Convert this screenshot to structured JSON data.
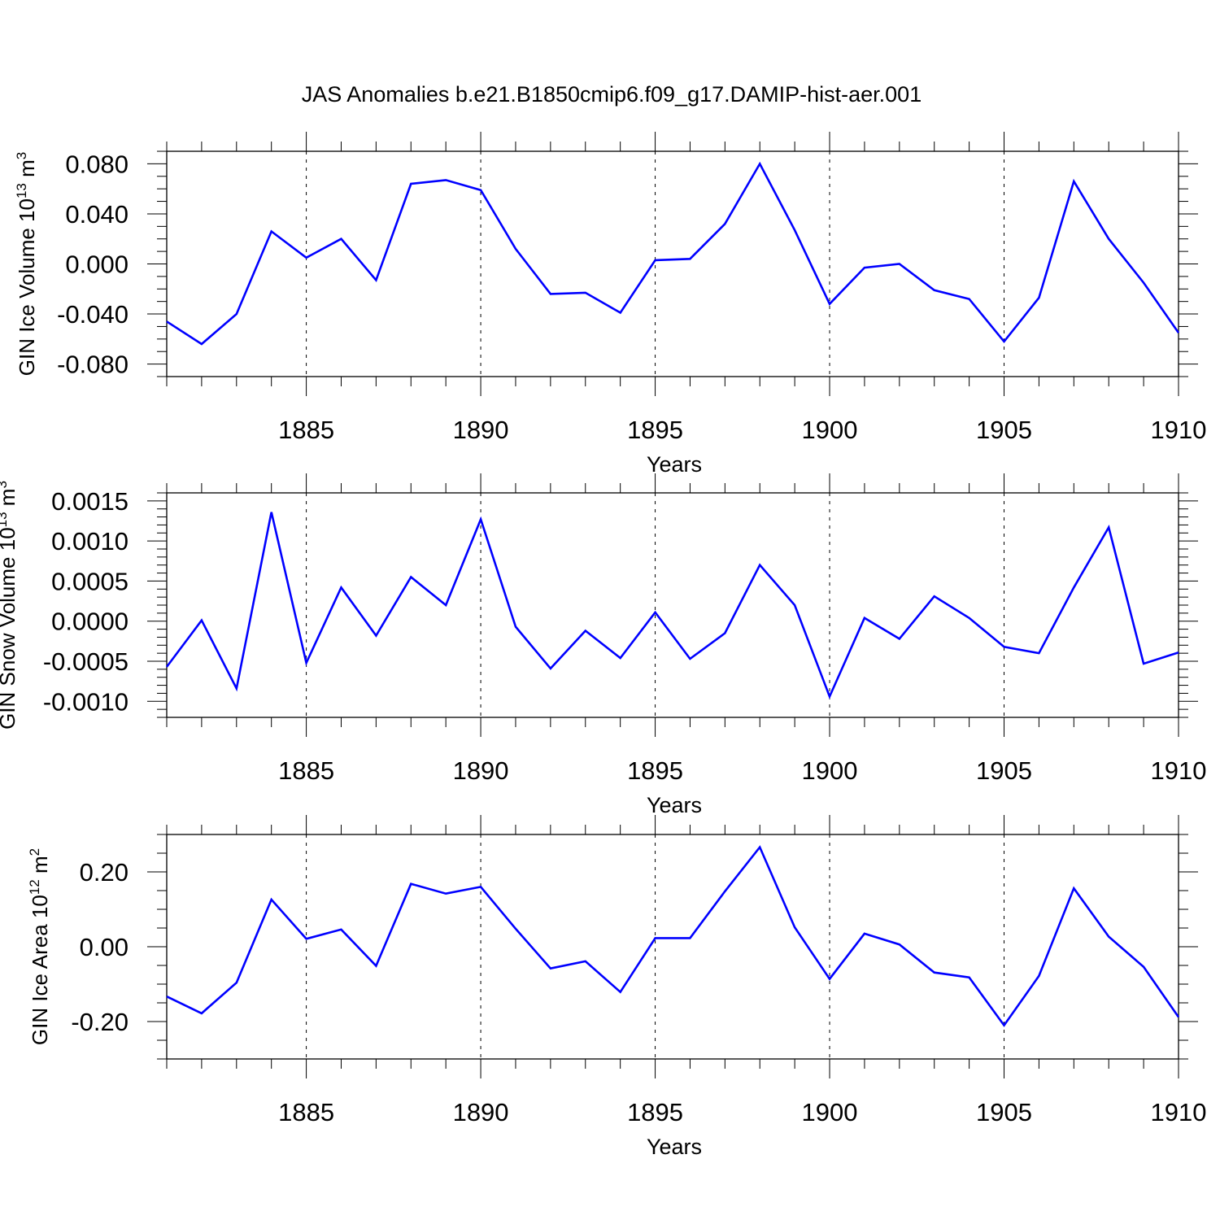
{
  "title": "JAS Anomalies b.e21.B1850cmip6.f09_g17.DAMIP-hist-aer.001",
  "colors": {
    "line": "#0000ff",
    "frame": "#000000",
    "grid": "#000000",
    "background": "#ffffff"
  },
  "chart_data": [
    {
      "type": "line",
      "title": "JAS Anomalies b.e21.B1850cmip6.f09_g17.DAMIP-hist-aer.001",
      "ylabel": {
        "text": "GIN Ice Volume 10",
        "sup": "13",
        "unit": " m",
        "unit_sup": "3"
      },
      "xlabel": "Years",
      "xlim": [
        1881,
        1910
      ],
      "ylim": [
        -0.09,
        0.09
      ],
      "xticks": [
        1885,
        1890,
        1895,
        1900,
        1905,
        1910
      ],
      "xtick_labels": [
        "1885",
        "1890",
        "1895",
        "1900",
        "1905",
        "1910"
      ],
      "yticks": [
        0.08,
        0.04,
        0.0,
        -0.04,
        -0.08
      ],
      "ytick_labels": [
        "0.080",
        "0.040",
        "0.000",
        "-0.040",
        "-0.080"
      ],
      "yminor_step": 0.01,
      "grid": "vertical dashed lines at major x ticks",
      "series": [
        {
          "x": [
            1881,
            1882,
            1883,
            1884,
            1885,
            1886,
            1887,
            1888,
            1889,
            1890,
            1891,
            1892,
            1893,
            1894,
            1895,
            1896,
            1897,
            1898,
            1899,
            1900,
            1901,
            1902,
            1903,
            1904,
            1905,
            1906,
            1907,
            1908,
            1909,
            1910
          ],
          "values": [
            -0.046,
            -0.064,
            -0.04,
            0.026,
            0.005,
            0.02,
            -0.013,
            0.064,
            0.067,
            0.059,
            0.012,
            -0.024,
            -0.023,
            -0.039,
            0.003,
            0.004,
            0.032,
            0.08,
            0.027,
            -0.032,
            -0.003,
            0.0,
            -0.021,
            -0.028,
            -0.062,
            -0.027,
            0.066,
            0.02,
            -0.015,
            -0.055
          ]
        }
      ]
    },
    {
      "type": "line",
      "ylabel": {
        "text": "GIN Snow Volume 10",
        "sup": "13",
        "unit": " m",
        "unit_sup": "3"
      },
      "xlabel": "Years",
      "xlim": [
        1881,
        1910
      ],
      "ylim": [
        -0.0012,
        0.0016
      ],
      "xticks": [
        1885,
        1890,
        1895,
        1900,
        1905,
        1910
      ],
      "xtick_labels": [
        "1885",
        "1890",
        "1895",
        "1900",
        "1905",
        "1910"
      ],
      "yticks": [
        0.0015,
        0.001,
        0.0005,
        0.0,
        -0.0005,
        -0.001
      ],
      "ytick_labels": [
        "0.0015",
        "0.0010",
        "0.0005",
        "0.0000",
        "-0.0005",
        "-0.0010"
      ],
      "yminor_step": 0.0001,
      "grid": "vertical dashed lines at major x ticks",
      "series": [
        {
          "x": [
            1881,
            1882,
            1883,
            1884,
            1885,
            1886,
            1887,
            1888,
            1889,
            1890,
            1891,
            1892,
            1893,
            1894,
            1895,
            1896,
            1897,
            1898,
            1899,
            1900,
            1901,
            1902,
            1903,
            1904,
            1905,
            1906,
            1907,
            1908,
            1909,
            1910
          ],
          "values": [
            -0.00057,
            1e-05,
            -0.00084,
            0.00136,
            -0.00052,
            0.00042,
            -0.00018,
            0.00055,
            0.0002,
            0.00127,
            -7e-05,
            -0.00059,
            -0.00012,
            -0.00046,
            0.00011,
            -0.00047,
            -0.00015,
            0.0007,
            0.0002,
            -0.00094,
            4e-05,
            -0.00022,
            0.00031,
            4e-05,
            -0.00032,
            -0.0004,
            0.00042,
            0.00117,
            -0.00053,
            -0.00039
          ]
        }
      ]
    },
    {
      "type": "line",
      "ylabel": {
        "text": "GIN Ice Area 10",
        "sup": "12",
        "unit": " m",
        "unit_sup": "2"
      },
      "xlabel": "Years",
      "xlim": [
        1881,
        1910
      ],
      "ylim": [
        -0.3,
        0.3
      ],
      "xticks": [
        1885,
        1890,
        1895,
        1900,
        1905,
        1910
      ],
      "xtick_labels": [
        "1885",
        "1890",
        "1895",
        "1900",
        "1905",
        "1910"
      ],
      "yticks": [
        0.2,
        0.0,
        -0.2
      ],
      "ytick_labels": [
        "0.20",
        "0.00",
        "-0.20"
      ],
      "yminor_step": 0.05,
      "grid": "vertical dashed lines at major x ticks",
      "series": [
        {
          "x": [
            1881,
            1882,
            1883,
            1884,
            1885,
            1886,
            1887,
            1888,
            1889,
            1890,
            1891,
            1892,
            1893,
            1894,
            1895,
            1896,
            1897,
            1898,
            1899,
            1900,
            1901,
            1902,
            1903,
            1904,
            1905,
            1906,
            1907,
            1908,
            1909,
            1910
          ],
          "values": [
            -0.133,
            -0.178,
            -0.096,
            0.126,
            0.021,
            0.046,
            -0.051,
            0.168,
            0.142,
            0.16,
            0.048,
            -0.058,
            -0.039,
            -0.121,
            0.023,
            0.023,
            0.148,
            0.266,
            0.052,
            -0.086,
            0.035,
            0.006,
            -0.069,
            -0.082,
            -0.21,
            -0.078,
            0.156,
            0.027,
            -0.054,
            -0.188
          ]
        }
      ]
    }
  ]
}
